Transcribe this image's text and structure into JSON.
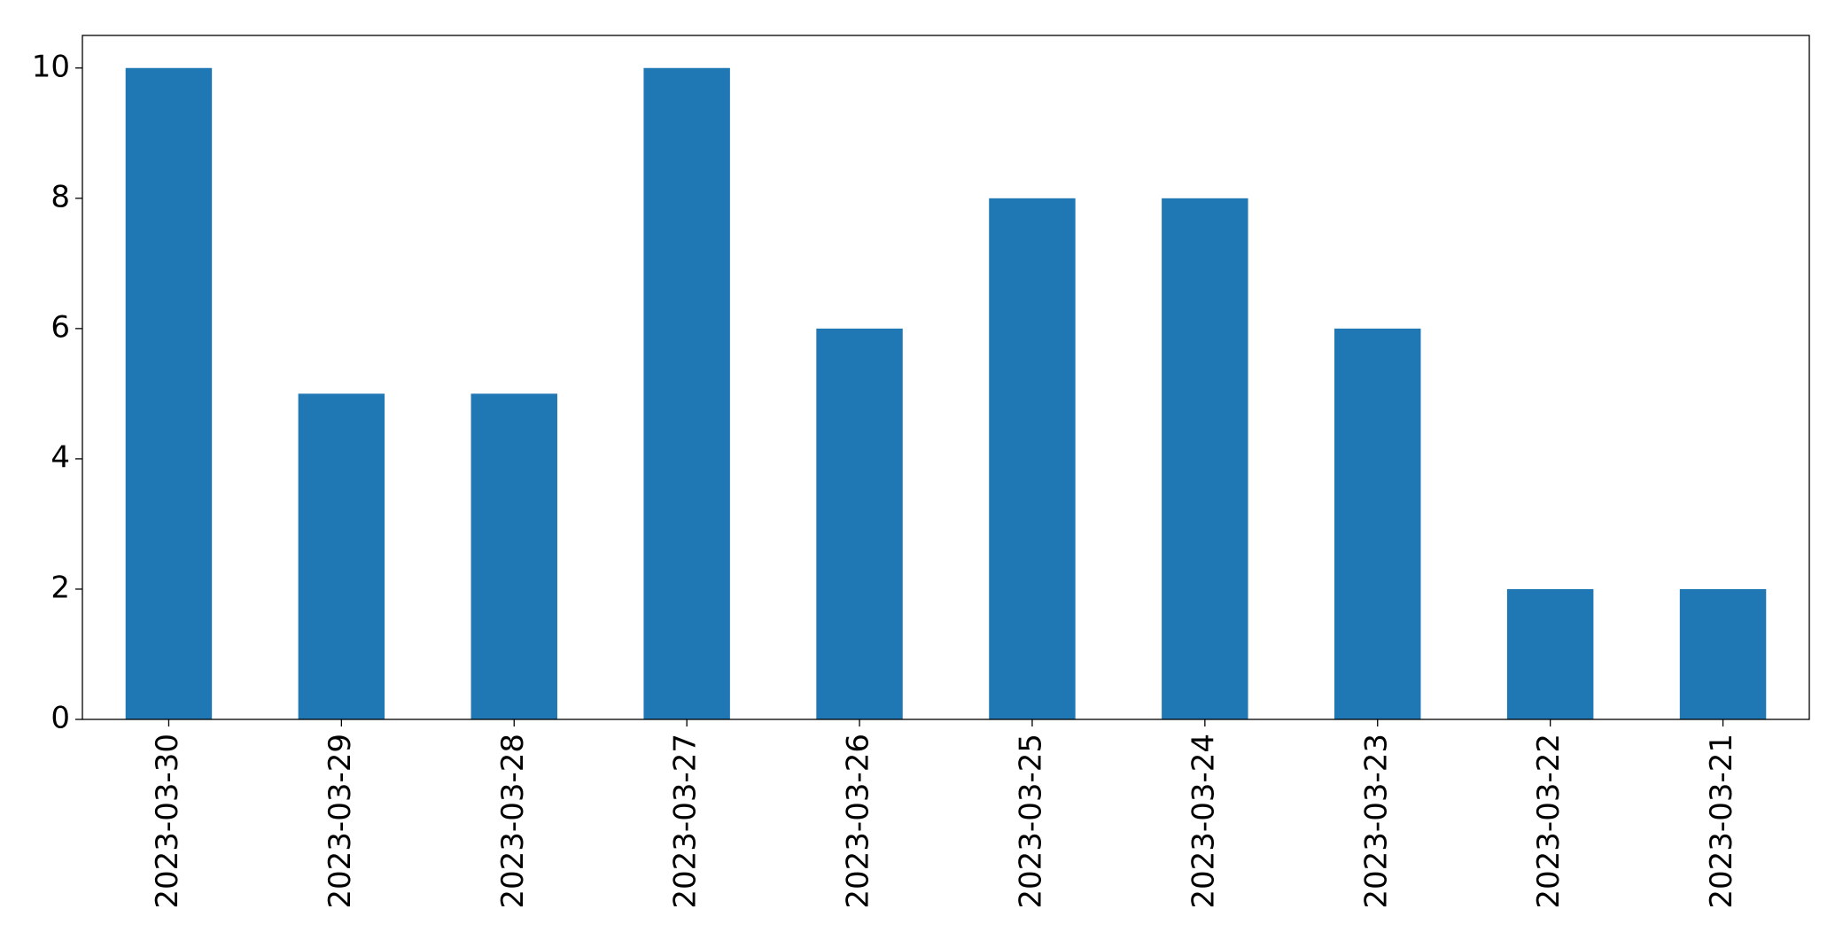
{
  "chart_data": {
    "type": "bar",
    "categories": [
      "2023-03-30",
      "2023-03-29",
      "2023-03-28",
      "2023-03-27",
      "2023-03-26",
      "2023-03-25",
      "2023-03-24",
      "2023-03-23",
      "2023-03-22",
      "2023-03-21"
    ],
    "values": [
      10,
      5,
      5,
      10,
      6,
      8,
      8,
      6,
      2,
      2
    ],
    "color": "#1f77b4",
    "ylim": [
      0,
      10.5
    ],
    "yticks": [
      0,
      2,
      4,
      6,
      8,
      10
    ],
    "grid": false
  }
}
